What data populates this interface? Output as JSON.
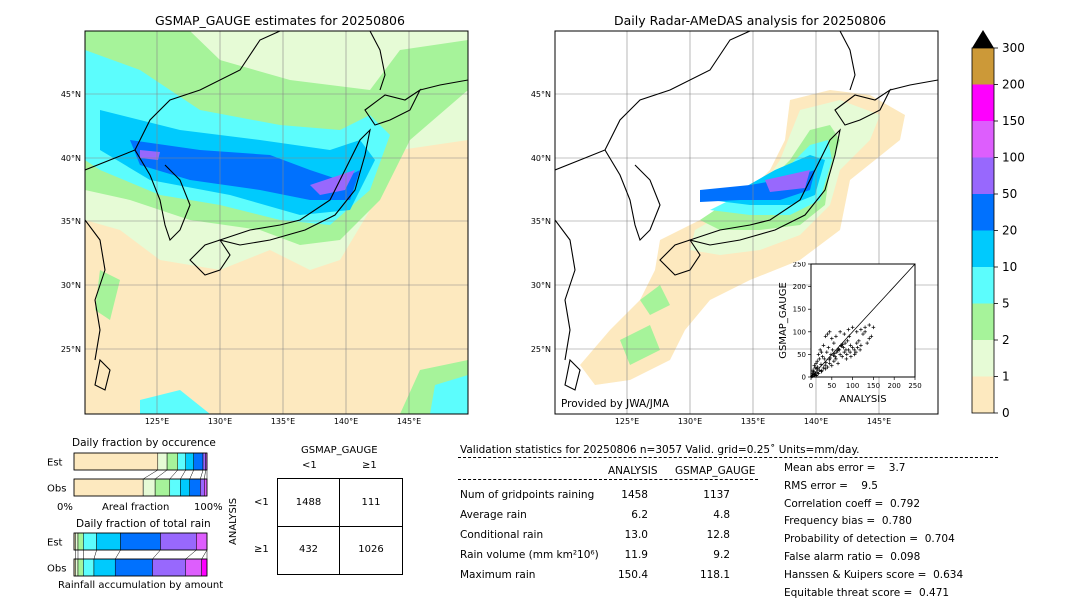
{
  "colors": {
    "bg_land": "#fde9bf",
    "levels": [
      "#fde9bf",
      "#e6fbd6",
      "#a6f39a",
      "#5cfdfd",
      "#00cafd",
      "#0071fe",
      "#9868fd",
      "#dd5efd",
      "#fe00fe",
      "#cc9938",
      "#000000"
    ]
  },
  "left_map": {
    "title": "GSMAP_GAUGE estimates for 20250806",
    "lat_labels": [
      "45°N",
      "40°N",
      "35°N",
      "30°N",
      "25°N"
    ],
    "lon_labels": [
      "125°E",
      "130°E",
      "135°E",
      "140°E",
      "145°E"
    ]
  },
  "right_map": {
    "title": "Daily Radar-AMeDAS analysis for 20250806",
    "lat_labels": [
      "45°N",
      "40°N",
      "35°N",
      "30°N",
      "25°N"
    ],
    "lon_labels": [
      "125°E",
      "130°E",
      "135°E",
      "140°E",
      "145°E"
    ],
    "credit": "Provided by JWA/JMA"
  },
  "colorbar": {
    "ticks": [
      "0",
      "1",
      "2",
      "5",
      "10",
      "20",
      "50",
      "100",
      "150",
      "200",
      "300"
    ]
  },
  "chart_data": [
    {
      "type": "scatter",
      "xlabel": "ANALYSIS",
      "ylabel": "GSMAP_GAUGE",
      "xlim": [
        0,
        250
      ],
      "ylim": [
        0,
        250
      ],
      "xticks": [
        "0",
        "25",
        "50",
        "75",
        "100",
        "125",
        "150",
        "175",
        "200",
        "225",
        "250"
      ],
      "yticks": [
        "0",
        "50",
        "100",
        "150",
        "200",
        "250"
      ],
      "xtick_labels": [
        "0",
        "50",
        "100",
        "150",
        "200",
        "250"
      ],
      "reference_line": "y=x",
      "points": [
        [
          2,
          1
        ],
        [
          5,
          3
        ],
        [
          8,
          6
        ],
        [
          12,
          4
        ],
        [
          15,
          10
        ],
        [
          18,
          8
        ],
        [
          20,
          15
        ],
        [
          25,
          12
        ],
        [
          30,
          20
        ],
        [
          35,
          18
        ],
        [
          40,
          22
        ],
        [
          45,
          30
        ],
        [
          50,
          25
        ],
        [
          55,
          35
        ],
        [
          60,
          40
        ],
        [
          65,
          30
        ],
        [
          70,
          50
        ],
        [
          75,
          45
        ],
        [
          80,
          55
        ],
        [
          85,
          40
        ],
        [
          90,
          60
        ],
        [
          95,
          70
        ],
        [
          100,
          65
        ],
        [
          105,
          50
        ],
        [
          110,
          75
        ],
        [
          115,
          80
        ],
        [
          120,
          70
        ],
        [
          125,
          95
        ],
        [
          130,
          100
        ],
        [
          140,
          85
        ],
        [
          150,
          110
        ],
        [
          10,
          20
        ],
        [
          15,
          35
        ],
        [
          20,
          40
        ],
        [
          25,
          55
        ],
        [
          30,
          70
        ],
        [
          35,
          90
        ],
        [
          40,
          95
        ],
        [
          45,
          100
        ],
        [
          50,
          85
        ],
        [
          55,
          75
        ],
        [
          60,
          90
        ],
        [
          70,
          100
        ],
        [
          80,
          95
        ],
        [
          90,
          105
        ],
        [
          100,
          110
        ],
        [
          5,
          15
        ],
        [
          8,
          25
        ],
        [
          12,
          30
        ],
        [
          18,
          50
        ],
        [
          22,
          60
        ],
        [
          28,
          45
        ],
        [
          32,
          40
        ],
        [
          38,
          55
        ],
        [
          42,
          65
        ],
        [
          48,
          50
        ],
        [
          52,
          60
        ],
        [
          58,
          45
        ],
        [
          62,
          55
        ],
        [
          68,
          60
        ],
        [
          72,
          70
        ],
        [
          78,
          65
        ],
        [
          82,
          75
        ],
        [
          88,
          80
        ],
        [
          92,
          90
        ],
        [
          3,
          8
        ],
        [
          6,
          12
        ],
        [
          9,
          5
        ],
        [
          14,
          18
        ],
        [
          16,
          22
        ],
        [
          24,
          28
        ],
        [
          26,
          14
        ],
        [
          34,
          26
        ],
        [
          36,
          32
        ],
        [
          44,
          38
        ],
        [
          46,
          42
        ],
        [
          54,
          48
        ],
        [
          56,
          52
        ],
        [
          64,
          58
        ],
        [
          66,
          62
        ],
        [
          74,
          68
        ],
        [
          76,
          72
        ],
        [
          84,
          60
        ],
        [
          86,
          50
        ],
        [
          94,
          55
        ],
        [
          96,
          45
        ],
        [
          104,
          60
        ],
        [
          108,
          55
        ],
        [
          112,
          65
        ],
        [
          118,
          60
        ],
        [
          135,
          75
        ],
        [
          145,
          90
        ],
        [
          110,
          100
        ],
        [
          120,
          105
        ],
        [
          130,
          110
        ],
        [
          140,
          115
        ],
        [
          4,
          2
        ],
        [
          7,
          9
        ],
        [
          11,
          7
        ],
        [
          13,
          3
        ]
      ]
    },
    {
      "type": "bar",
      "title": "Daily fraction by occurence",
      "categories": [
        "Est",
        "Obs"
      ],
      "xlabel": "Areal fraction",
      "x_left_label": "0%",
      "x_right_label": "100%",
      "series": [
        {
          "name": "0-1",
          "color": "#fde9bf",
          "values": [
            0.63,
            0.52
          ]
        },
        {
          "name": "1-2",
          "color": "#e6fbd6",
          "values": [
            0.07,
            0.09
          ]
        },
        {
          "name": "2-5",
          "color": "#a6f39a",
          "values": [
            0.08,
            0.11
          ]
        },
        {
          "name": "5-10",
          "color": "#5cfdfd",
          "values": [
            0.06,
            0.08
          ]
        },
        {
          "name": "10-20",
          "color": "#00cafd",
          "values": [
            0.06,
            0.07
          ]
        },
        {
          "name": "20-50",
          "color": "#0071fe",
          "values": [
            0.07,
            0.08
          ]
        },
        {
          "name": "50-100",
          "color": "#9868fd",
          "values": [
            0.02,
            0.03
          ]
        },
        {
          "name": "100-150",
          "color": "#dd5efd",
          "values": [
            0.01,
            0.02
          ]
        }
      ]
    },
    {
      "type": "bar",
      "title": "Daily fraction of total rain",
      "categories": [
        "Est",
        "Obs"
      ],
      "xlabel": "Rainfall accumulation by amount",
      "series": [
        {
          "name": "0-1",
          "color": "#fde9bf",
          "values": [
            0.01,
            0.01
          ]
        },
        {
          "name": "1-2",
          "color": "#e6fbd6",
          "values": [
            0.02,
            0.02
          ]
        },
        {
          "name": "2-5",
          "color": "#a6f39a",
          "values": [
            0.04,
            0.04
          ]
        },
        {
          "name": "5-10",
          "color": "#5cfdfd",
          "values": [
            0.1,
            0.08
          ]
        },
        {
          "name": "10-20",
          "color": "#00cafd",
          "values": [
            0.18,
            0.16
          ]
        },
        {
          "name": "20-50",
          "color": "#0071fe",
          "values": [
            0.3,
            0.28
          ]
        },
        {
          "name": "50-100",
          "color": "#9868fd",
          "values": [
            0.27,
            0.25
          ]
        },
        {
          "name": "100-150",
          "color": "#dd5efd",
          "values": [
            0.08,
            0.12
          ]
        },
        {
          "name": "150-200",
          "color": "#fe00fe",
          "values": [
            0.0,
            0.04
          ]
        }
      ]
    },
    {
      "type": "table",
      "title": "GSMAP_GAUGE",
      "row_axis_label": "ANALYSIS",
      "col_headers": [
        "<1",
        "≥1"
      ],
      "row_headers": [
        "<1",
        "≥1"
      ],
      "cells": [
        [
          "1488",
          "111"
        ],
        [
          "432",
          "1026"
        ]
      ]
    }
  ],
  "stats": {
    "header": "Validation statistics for 20250806  n=3057 Valid. grid=0.25˚ Units=mm/day.",
    "col_analysis": "ANALYSIS",
    "col_gsmap": "GSMAP_GAUGE",
    "rows": [
      {
        "label": "Num of gridpoints raining",
        "a": "1458",
        "g": "1137"
      },
      {
        "label": "Average rain",
        "a": "6.2",
        "g": "4.8"
      },
      {
        "label": "Conditional rain",
        "a": "13.0",
        "g": "12.8"
      },
      {
        "label": "Rain volume (mm km²10⁶)",
        "a": "11.9",
        "g": "9.2"
      },
      {
        "label": "Maximum rain",
        "a": "150.4",
        "g": "118.1"
      }
    ],
    "scores": [
      "Mean abs error =    3.7",
      "RMS error =    9.5",
      "Correlation coeff =  0.792",
      "Frequency bias =  0.780",
      "Probability of detection =  0.704",
      "False alarm ratio =  0.098",
      "Hanssen & Kuipers score =  0.634",
      "Equitable threat score =  0.471"
    ]
  }
}
